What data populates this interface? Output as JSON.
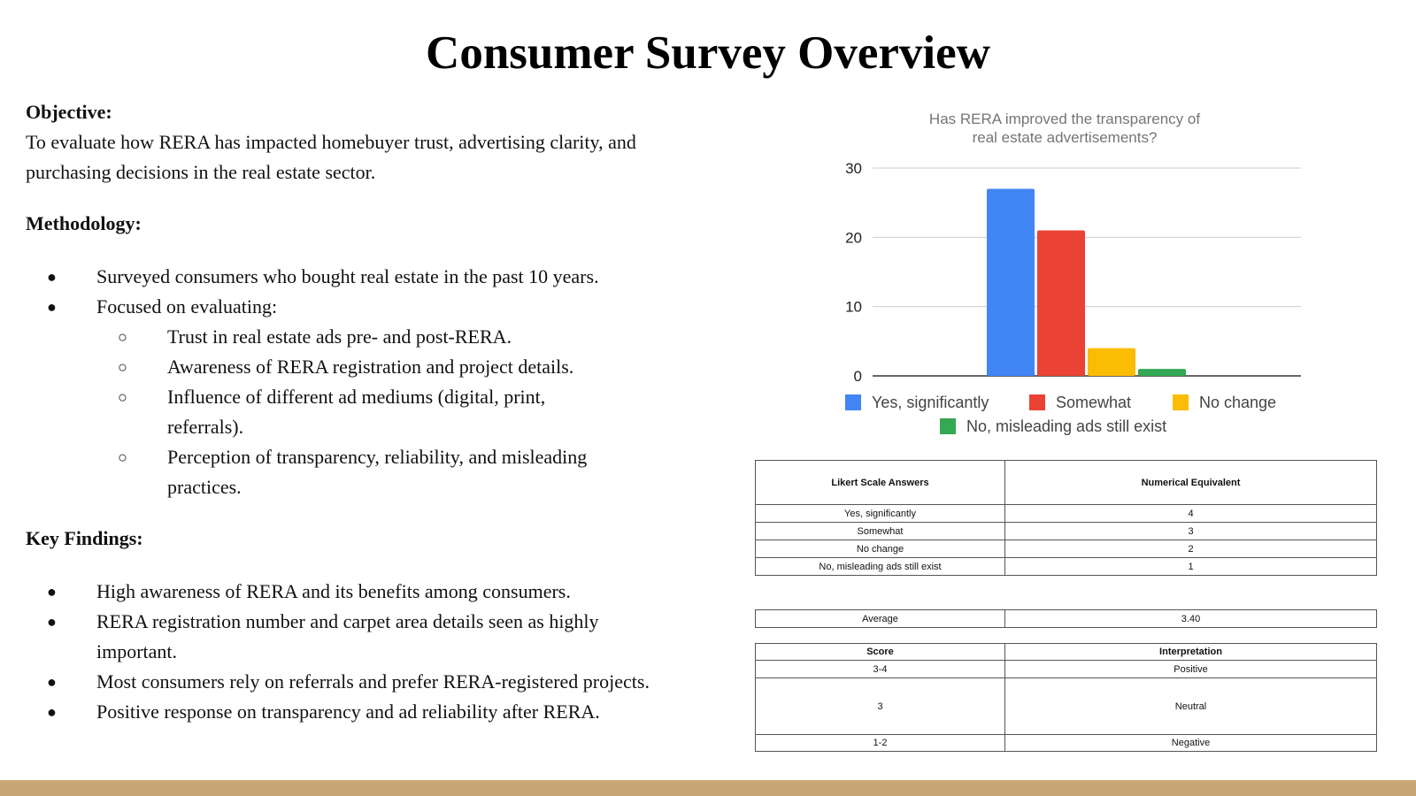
{
  "slide": {
    "title": "Consumer Survey Overview",
    "objective": {
      "heading": "Objective:",
      "text": " To evaluate how RERA has impacted homebuyer trust, advertising clarity, and purchasing decisions in the real estate sector."
    },
    "methodology": {
      "heading": "Methodology:",
      "items": [
        {
          "text": "Surveyed consumers who bought real estate in the past 10 years."
        },
        {
          "text": "Focused on evaluating:"
        }
      ],
      "subitems": [
        {
          "text": "Trust in real estate ads pre- and post-RERA."
        },
        {
          "text": "Awareness of RERA registration and project details."
        },
        {
          "text": "Influence of different ad mediums (digital, print, referrals)."
        },
        {
          "text": "Perception of transparency, reliability, and misleading practices."
        }
      ]
    },
    "key_findings": {
      "heading": "Key Findings:",
      "items": [
        {
          "text": "High awareness of RERA and its benefits among consumers."
        },
        {
          "text": "RERA registration number and carpet area details seen as highly important."
        },
        {
          "text": "Most consumers rely on referrals and prefer RERA-registered projects."
        },
        {
          "text": "Positive response on transparency and ad reliability after RERA."
        }
      ]
    }
  },
  "chart_data": {
    "type": "bar",
    "title": "Has RERA improved the transparency of real estate advertisements?",
    "title_lines": [
      "Has RERA improved the transparency of",
      "real estate advertisements?"
    ],
    "categories": [
      "Yes, significantly",
      "Somewhat",
      "No change",
      "No, misleading ads still exist"
    ],
    "values": [
      27,
      21,
      4,
      1
    ],
    "colors": [
      "#4285f4",
      "#ea4335",
      "#fbbc04",
      "#34a853"
    ],
    "ylim": [
      0,
      30
    ],
    "yticks": [
      "0",
      "10",
      "20",
      "30"
    ],
    "grid": true,
    "legend_position": "bottom",
    "xlabel": "",
    "ylabel": ""
  },
  "likert_table": {
    "headers": [
      "Likert Scale Answers",
      "Numerical Equivalent"
    ],
    "rows": [
      [
        "Yes, significantly",
        "4"
      ],
      [
        "Somewhat",
        "3"
      ],
      [
        "No change",
        "2"
      ],
      [
        "No, misleading ads still exist",
        "1"
      ]
    ]
  },
  "average_table": {
    "label": "Average",
    "value": "3.40"
  },
  "score_table": {
    "headers": [
      "Score",
      "Interpretation"
    ],
    "rows": [
      [
        "3-4",
        "Positive"
      ],
      [
        "3",
        "Neutral"
      ],
      [
        "1-2",
        "Negative"
      ]
    ]
  },
  "colors": {
    "footer_bar": "#c9a675"
  }
}
